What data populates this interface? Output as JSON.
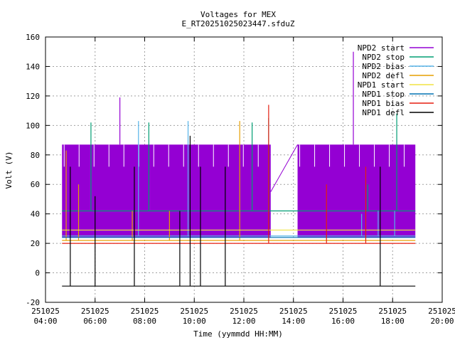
{
  "chart_data": {
    "type": "line",
    "title": "Voltages for MEX",
    "subtitle": "E_RT20251025023447.sfduZ",
    "xlabel": "Time (yymmdd HH:MM)",
    "ylabel": "Volt (V)",
    "xlim": [
      "2025-10-25 04:00",
      "2025-10-25 20:00"
    ],
    "ylim": [
      -20,
      160
    ],
    "grid": true,
    "legend_position": "top-right",
    "y_ticks": [
      -20,
      0,
      20,
      40,
      60,
      80,
      100,
      120,
      140,
      160
    ],
    "x_ticks": [
      {
        "date": "251025",
        "time": "04:00"
      },
      {
        "date": "251025",
        "time": "06:00"
      },
      {
        "date": "251025",
        "time": "08:00"
      },
      {
        "date": "251025",
        "time": "10:00"
      },
      {
        "date": "251025",
        "time": "12:00"
      },
      {
        "date": "251025",
        "time": "14:00"
      },
      {
        "date": "251025",
        "time": "16:00"
      },
      {
        "date": "251025",
        "time": "18:00"
      },
      {
        "date": "251025",
        "time": "20:00"
      }
    ],
    "series": [
      {
        "name": "NPD2 start",
        "color": "#9400d3",
        "segments": [
          {
            "x": [
              "2025-10-25 04:40",
              "2025-10-25 13:05"
            ],
            "low": 24,
            "high": 87
          },
          {
            "x": [
              "2025-10-25 14:10",
              "2025-10-25 18:55"
            ],
            "low": 24,
            "high": 87
          }
        ],
        "gap_line": {
          "x": [
            "2025-10-25 13:05",
            "2025-10-25 14:10"
          ],
          "y": [
            55,
            87
          ]
        },
        "spikes": [
          {
            "x": "2025-10-25 07:00",
            "y": 119
          },
          {
            "x": "2025-10-25 16:25",
            "y": 150
          }
        ]
      },
      {
        "name": "NPD2 stop",
        "color": "#009e73",
        "baseline": 42,
        "x": [
          "2025-10-25 04:40",
          "2025-10-25 18:55"
        ],
        "spikes": [
          {
            "x": "2025-10-25 05:50",
            "y": 102
          },
          {
            "x": "2025-10-25 08:10",
            "y": 102
          },
          {
            "x": "2025-10-25 12:20",
            "y": 102
          },
          {
            "x": "2025-10-25 13:00",
            "y": 105
          },
          {
            "x": "2025-10-25 17:00",
            "y": 60
          },
          {
            "x": "2025-10-25 18:10",
            "y": 108
          }
        ]
      },
      {
        "name": "NPD2 bias",
        "color": "#56b4e9",
        "baseline": 25,
        "x": [
          "2025-10-25 04:40",
          "2025-10-25 18:55"
        ],
        "spikes": [
          {
            "x": "2025-10-25 07:45",
            "y": 103
          },
          {
            "x": "2025-10-25 09:45",
            "y": 103
          },
          {
            "x": "2025-10-25 16:45",
            "y": 40
          },
          {
            "x": "2025-10-25 17:25",
            "y": 42
          },
          {
            "x": "2025-10-25 18:05",
            "y": 42
          }
        ]
      },
      {
        "name": "NPD2 defl",
        "color": "#e69f00",
        "baseline": 22,
        "x": [
          "2025-10-25 04:40",
          "2025-10-25 18:55"
        ],
        "spikes": [
          {
            "x": "2025-10-25 04:50",
            "y": 83
          },
          {
            "x": "2025-10-25 05:20",
            "y": 60
          },
          {
            "x": "2025-10-25 07:30",
            "y": 42
          },
          {
            "x": "2025-10-25 09:00",
            "y": 42
          },
          {
            "x": "2025-10-25 11:50",
            "y": 103
          }
        ]
      },
      {
        "name": "NPD1 start",
        "color": "#f0e442",
        "baseline": 29,
        "x": [
          "2025-10-25 04:40",
          "2025-10-25 18:55"
        ],
        "spikes": []
      },
      {
        "name": "NPD1 stop",
        "color": "#0072b2",
        "baseline": 24,
        "x": [
          "2025-10-25 04:40",
          "2025-10-25 18:55"
        ],
        "spikes": []
      },
      {
        "name": "NPD1 bias",
        "color": "#e51e10",
        "baseline": 20,
        "x": [
          "2025-10-25 04:40",
          "2025-10-25 18:55"
        ],
        "spikes": [
          {
            "x": "2025-10-25 13:00",
            "y": 114
          },
          {
            "x": "2025-10-25 15:20",
            "y": 60
          },
          {
            "x": "2025-10-25 16:55",
            "y": 72
          }
        ]
      },
      {
        "name": "NPD1 defl",
        "color": "#000000",
        "baseline": -9,
        "x": [
          "2025-10-25 04:40",
          "2025-10-25 18:55"
        ],
        "spikes": [
          {
            "x": "2025-10-25 05:00",
            "y": 72
          },
          {
            "x": "2025-10-25 06:00",
            "y": 52
          },
          {
            "x": "2025-10-25 07:35",
            "y": 72
          },
          {
            "x": "2025-10-25 09:25",
            "y": 42
          },
          {
            "x": "2025-10-25 09:50",
            "y": 93
          },
          {
            "x": "2025-10-25 10:15",
            "y": 72
          },
          {
            "x": "2025-10-25 11:15",
            "y": 72
          },
          {
            "x": "2025-10-25 17:30",
            "y": 72
          }
        ]
      }
    ]
  }
}
